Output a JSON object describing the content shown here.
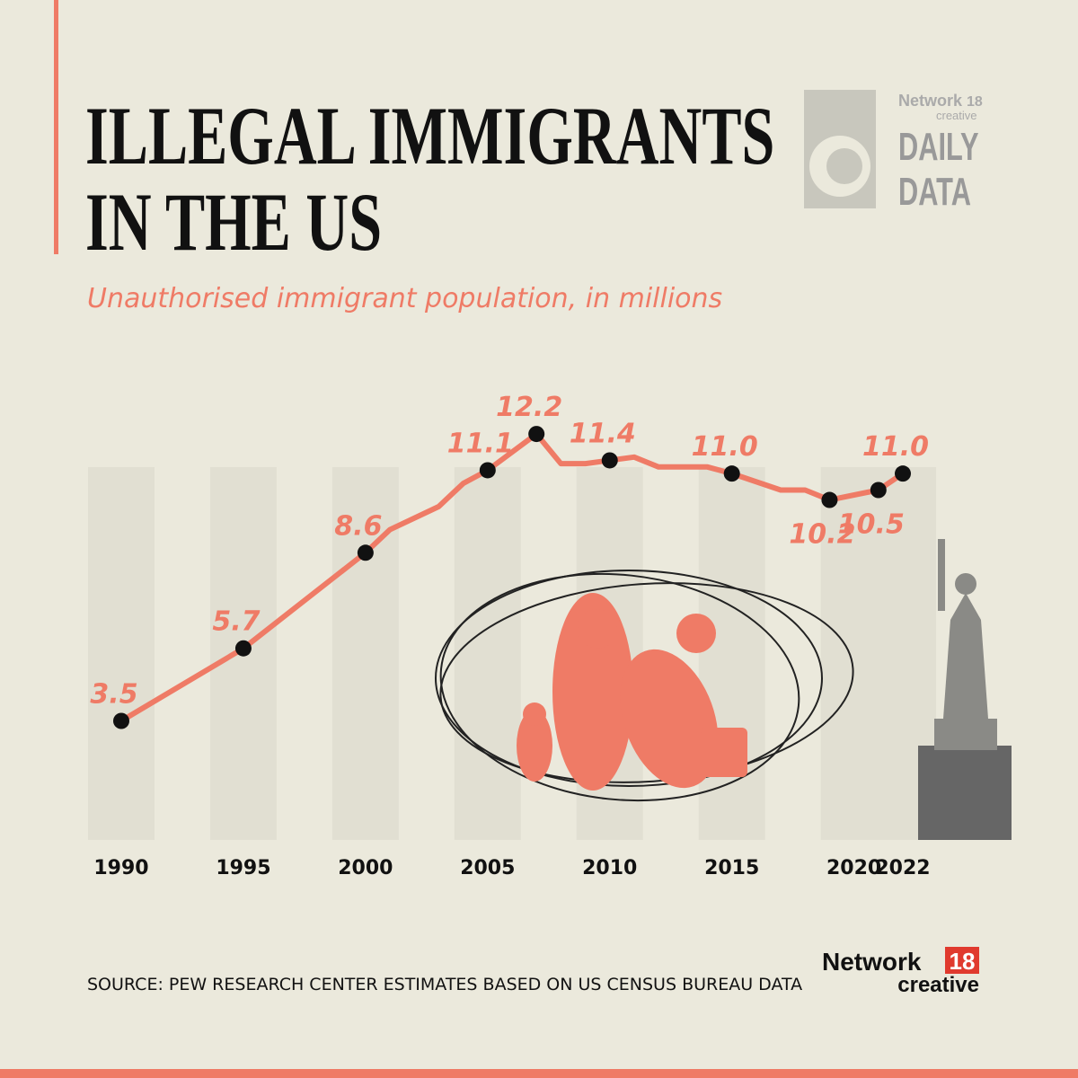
{
  "chart_data": {
    "type": "line",
    "title_lines": [
      "ILLEGAL IMMIGRANTS",
      "IN THE US"
    ],
    "subtitle": "Unauthorised immigrant population, in millions",
    "source": "SOURCE: PEW RESEARCH CENTER ESTIMATES BASED ON US CENSUS BUREAU DATA",
    "logo_top": {
      "brand": "Network",
      "number": "18",
      "sub": "creative",
      "lines": [
        "DAILY",
        "DATA"
      ]
    },
    "logo_bottom": {
      "brand": "Network",
      "number": "18",
      "sub": "creative"
    },
    "x": [
      1990,
      1995,
      2000,
      2001,
      2003,
      2004,
      2005,
      2007,
      2008,
      2009,
      2010,
      2011,
      2012,
      2014,
      2015,
      2017,
      2018,
      2019,
      2021,
      2022
    ],
    "values": [
      3.5,
      5.7,
      8.6,
      9.3,
      10.0,
      10.7,
      11.1,
      12.2,
      11.3,
      11.3,
      11.4,
      11.5,
      11.2,
      11.2,
      11.0,
      10.5,
      10.5,
      10.2,
      10.5,
      11.0
    ],
    "value_labels": [
      "3.5",
      "5.7",
      "8.6",
      null,
      null,
      null,
      "11.1",
      "12.2",
      null,
      null,
      "11.4",
      null,
      null,
      null,
      "11.0",
      null,
      null,
      "10.2",
      "10.5",
      "11.0"
    ],
    "color": "#ef7b66",
    "xlim": [
      1990,
      2022
    ],
    "xticks": [
      1990,
      1995,
      2000,
      2005,
      2010,
      2015,
      2020,
      2022
    ],
    "ylim": [
      0,
      14
    ]
  }
}
